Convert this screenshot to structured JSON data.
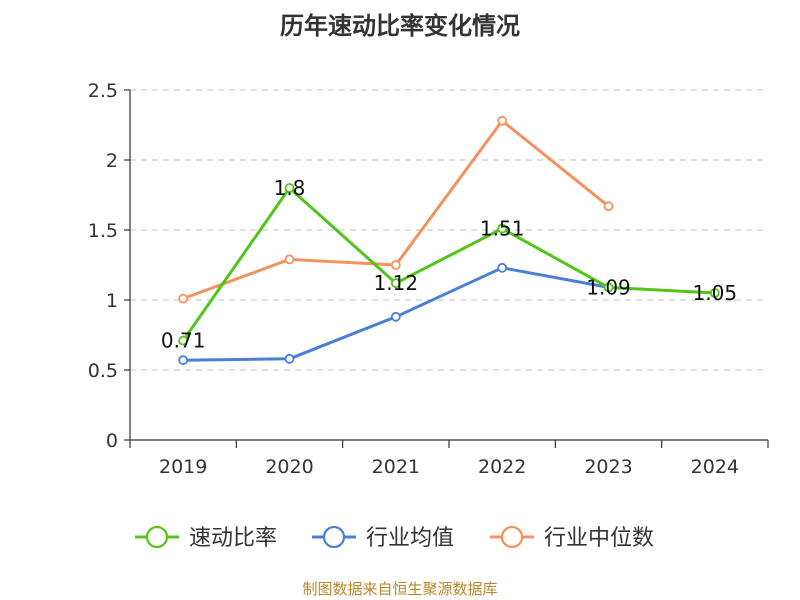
{
  "title": "历年速动比率变化情况",
  "footer": "制图数据来自恒生聚源数据库",
  "colors": {
    "quick_ratio": "#52c41a",
    "industry_avg": "#4a7fd6",
    "industry_median": "#f5915c",
    "grid": "#cccccc",
    "axis": "#333333"
  },
  "chart_data": {
    "type": "line",
    "title": "历年速动比率变化情况",
    "xlabel": "",
    "ylabel": "",
    "categories": [
      "2019",
      "2020",
      "2021",
      "2022",
      "2023",
      "2024"
    ],
    "ylim": [
      0,
      2.5
    ],
    "yticks": [
      "0",
      "0.5",
      "1",
      "1.5",
      "2",
      "2.5"
    ],
    "grid": true,
    "legend_position": "bottom",
    "series": [
      {
        "name": "速动比率",
        "values": [
          0.71,
          1.8,
          1.12,
          1.51,
          1.09,
          1.05
        ],
        "labels": [
          "0.71",
          "1.8",
          "1.12",
          "1.51",
          "1.09",
          "1.05"
        ]
      },
      {
        "name": "行业均值",
        "values": [
          0.57,
          0.58,
          0.88,
          1.23,
          1.09,
          null
        ]
      },
      {
        "name": "行业中位数",
        "values": [
          1.01,
          1.29,
          1.25,
          2.28,
          1.67,
          null
        ]
      }
    ]
  }
}
